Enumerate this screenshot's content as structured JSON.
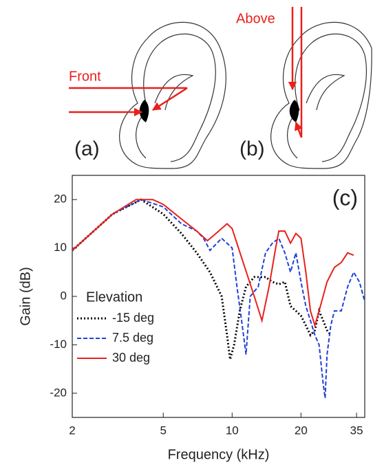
{
  "labels": {
    "front": "Front",
    "above": "Above",
    "panel_a": "(a)",
    "panel_b": "(b)"
  },
  "chart_data": {
    "type": "line",
    "annotation": "(c)",
    "x_label": "Frequency (kHz)",
    "y_label": "Gain (dB)",
    "xscale": "log",
    "xlim": [
      2,
      38
    ],
    "xticks": [
      2,
      5,
      10,
      20,
      35
    ],
    "ylim": [
      -25,
      25
    ],
    "yticks": [
      -20,
      -10,
      0,
      10,
      20
    ],
    "legend_title": "Elevation",
    "legend": "lower left",
    "series": [
      {
        "name": "-15 deg",
        "color": "#000000",
        "dash": "dotted",
        "x": [
          2,
          3,
          4,
          5,
          6,
          7,
          8,
          9,
          9.5,
          9.8,
          10.2,
          10.8,
          11.5,
          12.5,
          14,
          15,
          16,
          17,
          18,
          19,
          20,
          21,
          22,
          23,
          24,
          25,
          26,
          27
        ],
        "values": [
          9.5,
          17,
          20,
          17,
          13,
          9,
          5,
          0,
          -8,
          -13,
          -10,
          -3,
          2,
          4,
          4,
          3,
          2.5,
          3,
          -2,
          -3,
          -4,
          -6,
          -8,
          -7,
          -3,
          -5,
          -7,
          -8
        ]
      },
      {
        "name": "7.5 deg",
        "color": "#1f3fd6",
        "dash": "dashed",
        "x": [
          2,
          3,
          4,
          5,
          6,
          7,
          7.5,
          8,
          9,
          10,
          10.5,
          11,
          11.5,
          12,
          13,
          14,
          15,
          16,
          17,
          18,
          19,
          20,
          21,
          22,
          23,
          24,
          25,
          25.5,
          26,
          27,
          28,
          30,
          32,
          34,
          36,
          38
        ],
        "values": [
          9.5,
          17,
          20,
          18.5,
          15,
          13.5,
          12,
          9.5,
          12,
          10,
          2,
          -5,
          -12,
          0,
          2,
          9,
          11,
          12,
          9,
          5,
          9,
          3,
          -2,
          -5,
          -8,
          -10,
          -18,
          -21,
          -12,
          -6,
          -3,
          -3,
          2,
          5,
          3,
          -1
        ]
      },
      {
        "name": "30 deg",
        "color": "#e8201c",
        "dash": "solid",
        "x": [
          2,
          3,
          3.8,
          4.5,
          5,
          6,
          7,
          7.8,
          8.5,
          9.5,
          10,
          11,
          12.5,
          13.5,
          14.5,
          15.5,
          16,
          17,
          18,
          19,
          20,
          21,
          22,
          23,
          24,
          26,
          28,
          30,
          32,
          34
        ],
        "values": [
          9.5,
          17,
          20,
          20,
          19,
          16,
          13.5,
          11.5,
          13,
          15,
          14,
          8,
          0,
          -5,
          2,
          10,
          13.5,
          13.5,
          11,
          13,
          12,
          5,
          -3,
          -6,
          -3,
          3,
          6,
          7,
          9,
          8.5
        ]
      }
    ]
  }
}
